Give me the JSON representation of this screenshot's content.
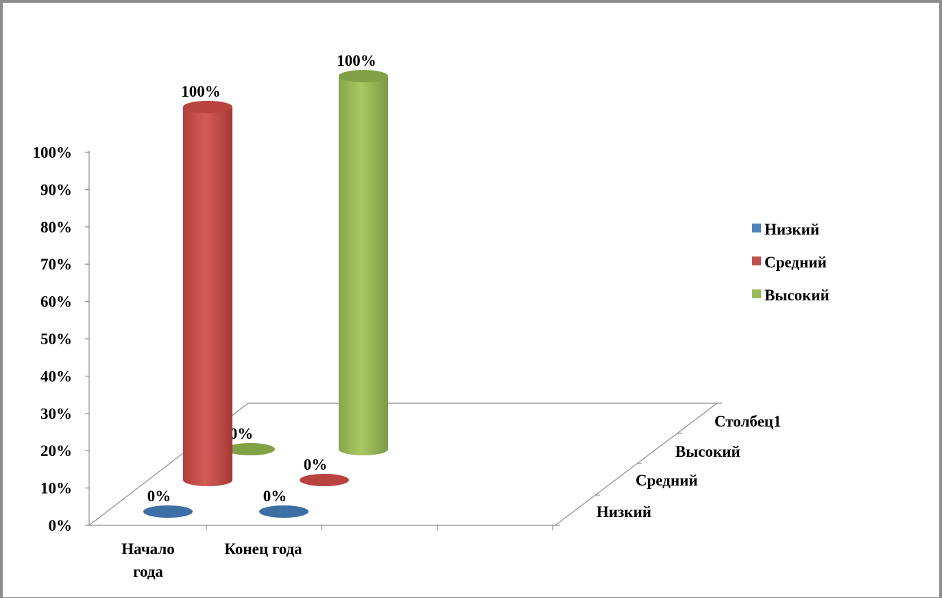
{
  "chart_data": {
    "type": "bar",
    "style": "3d-cylinder",
    "categories": [
      "Начало года",
      "Конец года"
    ],
    "category_label_lines": [
      [
        "Начало",
        "года"
      ],
      [
        "Конец года"
      ]
    ],
    "depth_categories": [
      "Низкий",
      "Средний",
      "Высокий",
      "Столбец1"
    ],
    "series": [
      {
        "name": "Низкий",
        "values": [
          0,
          0
        ],
        "labels": [
          "0%",
          "0%"
        ],
        "color": "#4f81bd"
      },
      {
        "name": "Средний",
        "values": [
          100,
          0
        ],
        "labels": [
          "100%",
          "0%"
        ],
        "color": "#c0504d"
      },
      {
        "name": "Высокий",
        "values": [
          0,
          100
        ],
        "labels": [
          "0%",
          "100%"
        ],
        "color": "#9bbb59"
      }
    ],
    "yticks": [
      "0%",
      "10%",
      "20%",
      "30%",
      "40%",
      "50%",
      "60%",
      "70%",
      "80%",
      "90%",
      "100%"
    ],
    "ylim": [
      0,
      100
    ],
    "legend": {
      "position": "right",
      "entries": [
        "Низкий",
        "Средний",
        "Высокий"
      ]
    },
    "grid": false
  }
}
